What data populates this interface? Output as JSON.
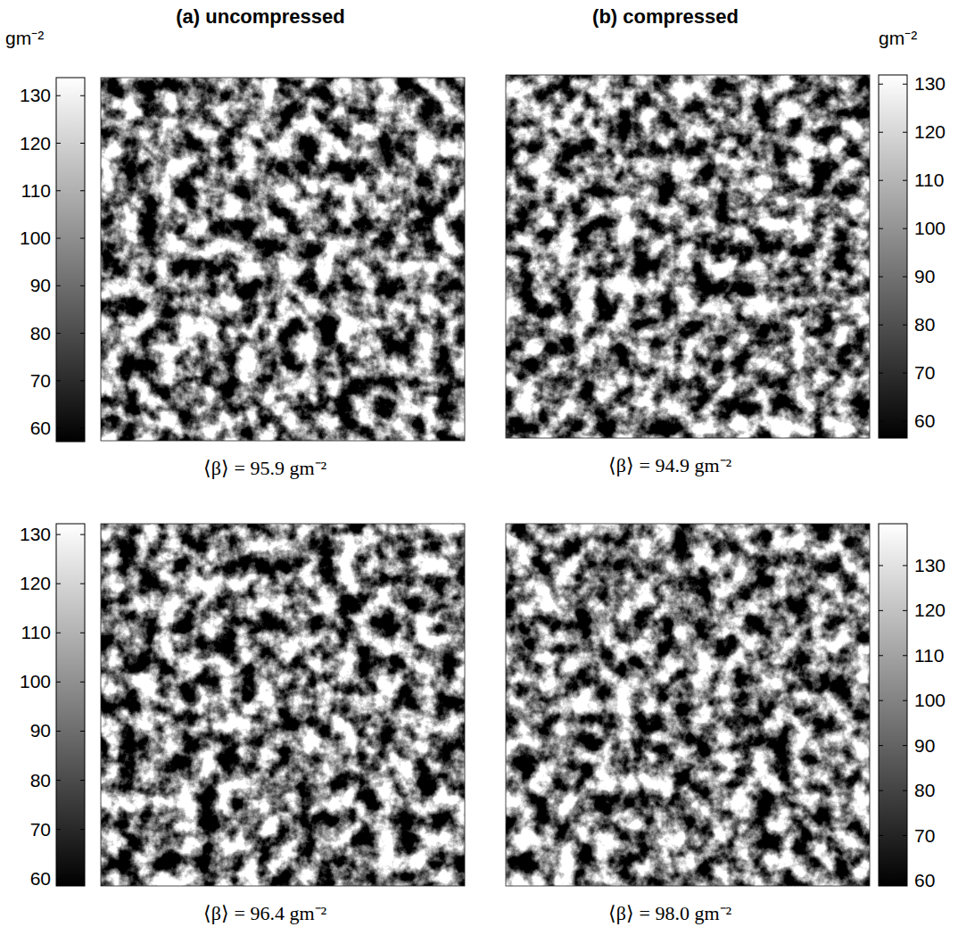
{
  "chart_data": [
    {
      "type": "heatmap",
      "title": "(a)   uncompressed",
      "tick_labels": false,
      "colorbar": {
        "range": [
          57.2,
          133.8
        ],
        "ticks": [
          60,
          70,
          80,
          90,
          100,
          110,
          120,
          130
        ],
        "label": "gm⁻²",
        "colors": [
          "#000000",
          "#ffffff"
        ]
      },
      "caption": "⟨β⟩ = 95.9 gm⁻²"
    },
    {
      "type": "heatmap",
      "title": "(b)   compressed",
      "tick_labels": false,
      "colorbar": {
        "range": [
          56.5,
          131.9
        ],
        "ticks": [
          60,
          70,
          80,
          90,
          100,
          110,
          120,
          130
        ],
        "label": "gm⁻²",
        "colors": [
          "#000000",
          "#ffffff"
        ]
      },
      "caption": "⟨β⟩ = 94.9 gm⁻²"
    },
    {
      "type": "heatmap",
      "tick_labels": false,
      "colorbar": {
        "range": [
          58.5,
          132.2
        ],
        "ticks": [
          60,
          70,
          80,
          90,
          100,
          110,
          120,
          130
        ],
        "colors": [
          "#000000",
          "#ffffff"
        ]
      },
      "caption": "⟨β⟩ = 96.4 gm⁻²"
    },
    {
      "type": "heatmap",
      "tick_labels": false,
      "colorbar": {
        "range": [
          58.8,
          139.3
        ],
        "ticks": [
          60,
          70,
          80,
          90,
          100,
          110,
          120,
          130
        ],
        "colors": [
          "#000000",
          "#ffffff"
        ]
      },
      "caption": "⟨β⟩ = 98.0 gm⁻²"
    }
  ]
}
